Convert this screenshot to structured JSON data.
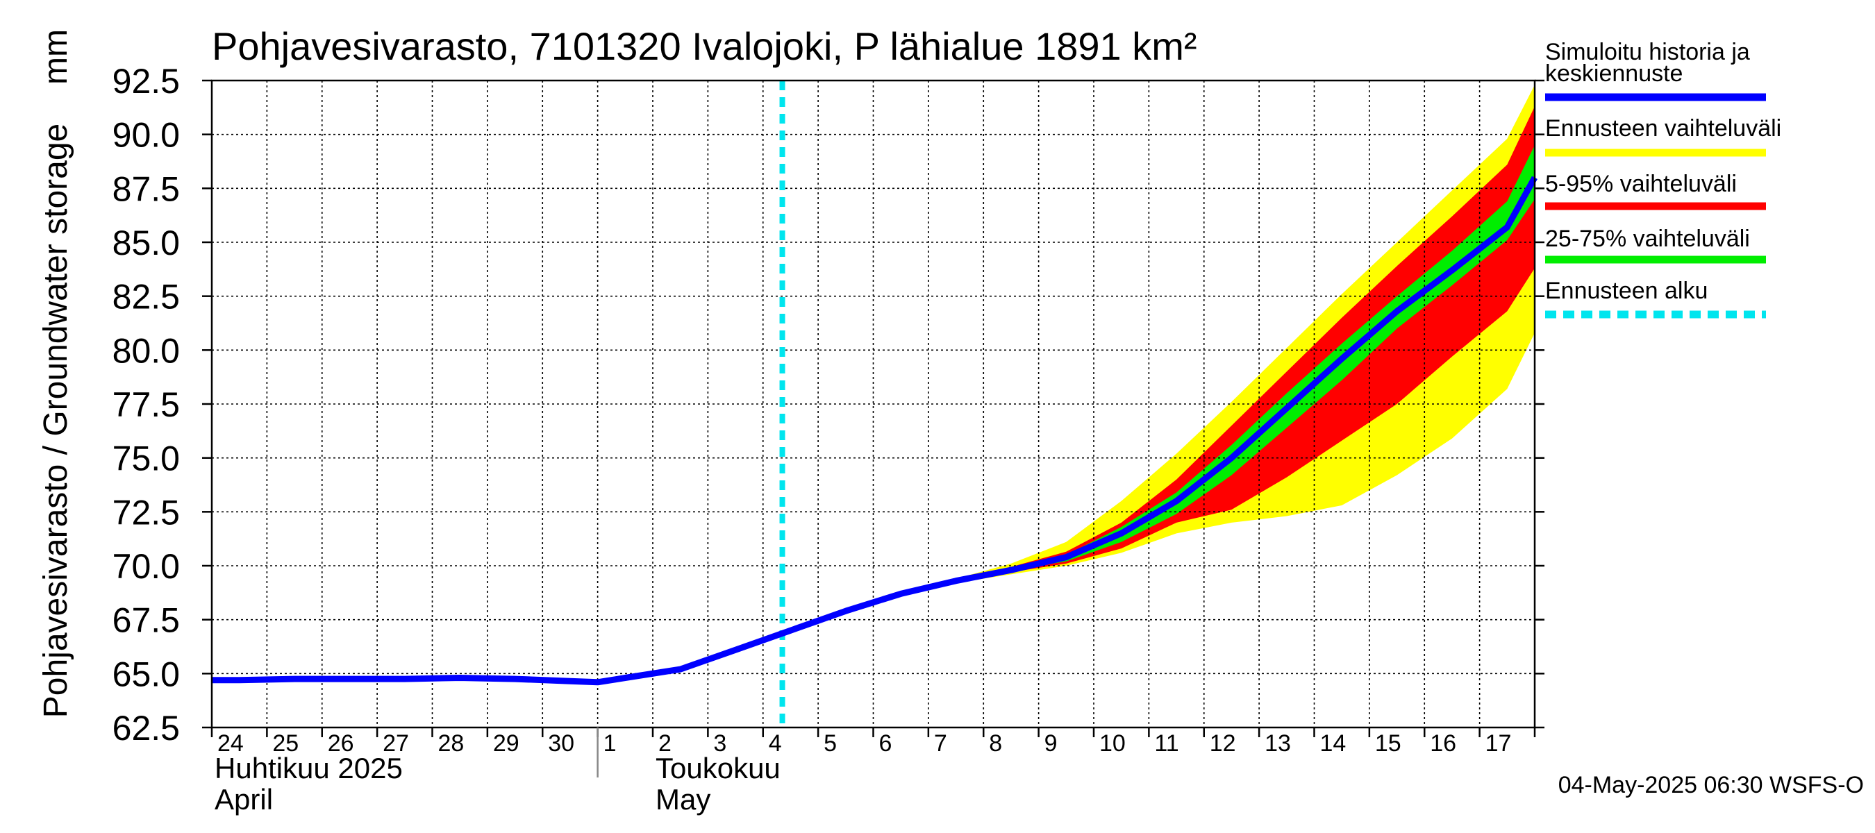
{
  "chart_data": {
    "type": "area",
    "title": "Pohjavesivarasto, 7101320 Ivalojoki, P lähialue 1891 km²",
    "ylabel": "Pohjavesivarasto / Groundwater storage",
    "yunit": "mm",
    "ylim": [
      62.5,
      92.5
    ],
    "yticks": [
      "62.5",
      "65.0",
      "67.5",
      "70.0",
      "72.5",
      "75.0",
      "77.5",
      "80.0",
      "82.5",
      "85.0",
      "87.5",
      "90.0",
      "92.5"
    ],
    "xlim": [
      -0.5,
      23.5
    ],
    "day_labels": [
      "24",
      "25",
      "26",
      "27",
      "28",
      "29",
      "30",
      "1",
      "2",
      "3",
      "4",
      "5",
      "6",
      "7",
      "8",
      "9",
      "10",
      "11",
      "12",
      "13",
      "14",
      "15",
      "16",
      "17"
    ],
    "month_labels": [
      {
        "line1": "Huhtikuu  2025",
        "line2": "April",
        "at": -0.5
      },
      {
        "line1": "Toukokuu",
        "line2": "May",
        "at": 7.5
      }
    ],
    "month_boundary": 6.5,
    "forecast_start": 9.85,
    "x": [
      -0.5,
      0,
      1,
      2,
      3,
      4,
      5,
      6,
      6.5,
      7,
      8,
      9,
      10,
      11,
      12,
      13,
      14,
      15,
      16,
      17,
      18,
      19,
      20,
      21,
      22,
      23,
      23.5
    ],
    "series": [
      {
        "name": "Simuloitu historia ja keskiennuste",
        "color": "#0000ff",
        "values": [
          64.7,
          64.7,
          64.75,
          64.75,
          64.75,
          64.8,
          64.75,
          64.65,
          64.6,
          64.8,
          65.2,
          66.1,
          67.0,
          67.9,
          68.7,
          69.3,
          69.8,
          70.4,
          71.5,
          73.0,
          75.0,
          77.3,
          79.6,
          81.8,
          83.7,
          85.7,
          88.0
        ]
      }
    ],
    "bands": [
      {
        "name": "Ennusteen vaihteluväli",
        "color": "#ffff00",
        "x": [
          9.85,
          10,
          11,
          12,
          13,
          14,
          15,
          16,
          17,
          18,
          19,
          20,
          21,
          22,
          23,
          23.5
        ],
        "lower": [
          67.0,
          67.1,
          67.9,
          68.7,
          69.2,
          69.6,
          70.0,
          70.6,
          71.5,
          72.0,
          72.3,
          72.8,
          74.2,
          75.9,
          78.2,
          80.8
        ],
        "upper": [
          67.0,
          67.1,
          67.9,
          68.7,
          69.4,
          70.1,
          71.1,
          73.0,
          75.2,
          77.6,
          80.1,
          82.6,
          85.0,
          87.4,
          89.8,
          92.3
        ]
      },
      {
        "name": "5-95% vaihteluväli",
        "color": "#ff0000",
        "x": [
          9.85,
          10,
          11,
          12,
          13,
          14,
          15,
          16,
          17,
          18,
          19,
          20,
          21,
          22,
          23,
          23.5
        ],
        "lower": [
          67.0,
          67.1,
          67.9,
          68.7,
          69.25,
          69.7,
          70.1,
          70.8,
          72.0,
          72.6,
          74.1,
          75.8,
          77.5,
          79.7,
          81.8,
          83.8
        ],
        "upper": [
          67.0,
          67.1,
          67.9,
          68.7,
          69.35,
          69.95,
          70.65,
          72.0,
          74.0,
          76.5,
          79.0,
          81.5,
          83.9,
          86.2,
          88.6,
          91.3
        ]
      },
      {
        "name": "25-75% vaihteluväli",
        "color": "#00ee00",
        "x": [
          9.85,
          10,
          11,
          12,
          13,
          14,
          15,
          16,
          17,
          18,
          19,
          20,
          21,
          22,
          23,
          23.5
        ],
        "lower": [
          67.0,
          67.1,
          67.9,
          68.7,
          69.3,
          69.8,
          70.2,
          71.1,
          72.4,
          74.2,
          76.4,
          78.6,
          81.0,
          83.0,
          85.1,
          87.0
        ],
        "upper": [
          67.0,
          67.1,
          67.9,
          68.7,
          69.3,
          69.85,
          70.5,
          71.8,
          73.4,
          75.6,
          78.0,
          80.3,
          82.5,
          84.6,
          86.9,
          89.5
        ]
      }
    ],
    "legend": [
      {
        "label": "Simuloitu historia ja",
        "label2": "keskiennuste",
        "color": "#0000ff",
        "style": "solid"
      },
      {
        "label": "Ennusteen vaihteluväli",
        "color": "#ffff00",
        "style": "solid"
      },
      {
        "label": "5-95% vaihteluväli",
        "color": "#ff0000",
        "style": "solid"
      },
      {
        "label": "25-75% vaihteluväli",
        "color": "#00ee00",
        "style": "solid"
      },
      {
        "label": "Ennusteen alku",
        "color": "#00e5ee",
        "style": "dashed"
      }
    ],
    "legend_placement": "right",
    "grid": true
  },
  "footer": "04-May-2025 06:30 WSFS-O"
}
